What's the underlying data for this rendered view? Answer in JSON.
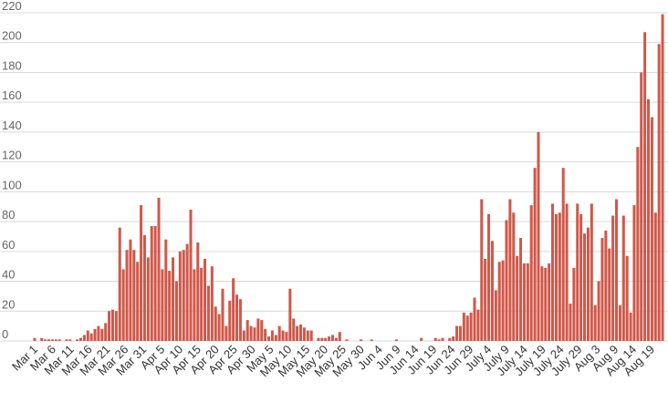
{
  "chart_data": {
    "type": "bar",
    "title": "",
    "xlabel": "",
    "ylabel": "",
    "ylim": [
      0,
      220
    ],
    "yticks": [
      0,
      20,
      40,
      60,
      80,
      100,
      120,
      140,
      160,
      180,
      200,
      220
    ],
    "grid": true,
    "legend": "none",
    "bar_color": "#d0584a",
    "x_tick_labels": [
      "Mar 1",
      "Mar 6",
      "Mar 11",
      "Mar 16",
      "Mar 21",
      "Mar 26",
      "Mar 31",
      "Apr 5",
      "Apr 10",
      "Apr 15",
      "Apr 20",
      "Apr 25",
      "Apr 30",
      "May 5",
      "May 10",
      "May 15",
      "May 20",
      "May 25",
      "May 30",
      "Jun 4",
      "Jun 9",
      "Jun 14",
      "Jun 19",
      "Jun 24",
      "Jun 29",
      "July 4",
      "July 9",
      "July 14",
      "July 19",
      "July 24",
      "July 29",
      "Aug 3",
      "Aug 9",
      "Aug 14",
      "Aug 19"
    ],
    "values": [
      2,
      0,
      2,
      1,
      1,
      1,
      1,
      1,
      0,
      1,
      1,
      0,
      1,
      2,
      4,
      7,
      5,
      8,
      10,
      8,
      12,
      20,
      21,
      20,
      76,
      48,
      61,
      68,
      61,
      53,
      91,
      71,
      56,
      77,
      77,
      96,
      48,
      68,
      47,
      56,
      40,
      60,
      61,
      65,
      88,
      48,
      66,
      49,
      55,
      37,
      50,
      23,
      18,
      35,
      10,
      27,
      42,
      31,
      28,
      7,
      14,
      10,
      9,
      15,
      14,
      8,
      3,
      7,
      4,
      10,
      7,
      6,
      35,
      15,
      10,
      11,
      9,
      7,
      7,
      0,
      2,
      2,
      2,
      3,
      4,
      2,
      6,
      0,
      1,
      0,
      0,
      0,
      1,
      0,
      0,
      1,
      0,
      0,
      0,
      0,
      0,
      0,
      1,
      0,
      0,
      0,
      0,
      0,
      0,
      2,
      0,
      0,
      0,
      2,
      1,
      2,
      0,
      2,
      3,
      10,
      10,
      19,
      17,
      19,
      29,
      21,
      95,
      55,
      85,
      67,
      34,
      53,
      54,
      81,
      95,
      86,
      57,
      69,
      52,
      52,
      91,
      116,
      140,
      50,
      49,
      52,
      92,
      85,
      86,
      116,
      92,
      25,
      49,
      92,
      85,
      72,
      76,
      92,
      24,
      40,
      69,
      74,
      62,
      84,
      95,
      24,
      84,
      57,
      19,
      91,
      130,
      180,
      207,
      162,
      150,
      86,
      199,
      219
    ]
  }
}
